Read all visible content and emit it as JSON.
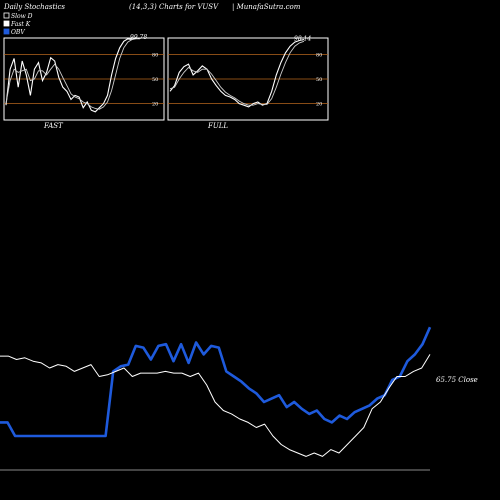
{
  "header": {
    "left": "Daily Stochastics",
    "center": "(14,3,3) Charts for VUSV",
    "right": "| MunafaSutra.com"
  },
  "legend": [
    {
      "label": "Slow  D",
      "color": "#000000",
      "border": "#ffffff"
    },
    {
      "label": "Fast K",
      "color": "#ffffff",
      "border": "#ffffff"
    },
    {
      "label": "OBV",
      "color": "#1e5adc",
      "border": "#1e5adc"
    }
  ],
  "chart_data": [
    {
      "type": "line",
      "panel": "FAST",
      "title": "FAST",
      "ylim": [
        0,
        100
      ],
      "yticks": [
        20,
        50,
        80
      ],
      "reference_lines": [
        20,
        50,
        80
      ],
      "last_value_label": "99.78",
      "series": [
        {
          "name": "Fast K",
          "color": "#ffffff",
          "values": [
            18,
            62,
            75,
            40,
            72,
            55,
            30,
            62,
            70,
            48,
            58,
            76,
            72,
            52,
            40,
            35,
            25,
            30,
            28,
            15,
            22,
            12,
            10,
            15,
            20,
            30,
            55,
            75,
            88,
            96,
            99,
            98,
            100,
            99.78
          ]
        },
        {
          "name": "Slow  D",
          "color": "#cccccc",
          "values": [
            20,
            48,
            62,
            58,
            60,
            62,
            48,
            50,
            60,
            60,
            55,
            62,
            68,
            62,
            52,
            42,
            32,
            28,
            26,
            22,
            20,
            16,
            14,
            13,
            16,
            22,
            36,
            55,
            75,
            88,
            95,
            98,
            99,
            99
          ]
        }
      ]
    },
    {
      "type": "line",
      "panel": "FULL",
      "title": "FULL",
      "ylim": [
        0,
        100
      ],
      "yticks": [
        20,
        50,
        80
      ],
      "reference_lines": [
        20,
        50,
        80
      ],
      "last_value_label": "98.14",
      "series": [
        {
          "name": "Fast K",
          "color": "#ffffff",
          "values": [
            35,
            42,
            58,
            65,
            68,
            55,
            60,
            66,
            62,
            50,
            42,
            35,
            30,
            28,
            25,
            20,
            18,
            16,
            20,
            22,
            18,
            20,
            35,
            55,
            70,
            82,
            90,
            95,
            97,
            98.14
          ]
        },
        {
          "name": "Slow  D",
          "color": "#cccccc",
          "values": [
            38,
            40,
            50,
            58,
            64,
            60,
            58,
            62,
            62,
            56,
            48,
            40,
            34,
            30,
            27,
            23,
            20,
            18,
            18,
            20,
            19,
            19,
            26,
            40,
            56,
            70,
            82,
            90,
            94,
            96
          ]
        }
      ]
    },
    {
      "type": "line",
      "panel": "price",
      "close_label": "65.75 Close",
      "series": [
        {
          "name": "OBV",
          "color": "#1e5adc",
          "values": [
            28,
            28,
            20,
            20,
            20,
            20,
            20,
            20,
            20,
            20,
            20,
            20,
            20,
            20,
            20,
            58,
            61,
            62,
            73,
            72,
            65,
            73,
            74,
            64,
            74,
            63,
            75,
            68,
            73,
            72,
            58,
            55,
            52,
            48,
            45,
            40,
            42,
            44,
            37,
            40,
            36,
            33,
            35,
            30,
            28,
            32,
            30,
            34,
            36,
            38,
            42,
            44,
            53,
            55,
            64,
            68,
            74,
            84
          ]
        },
        {
          "name": "Close",
          "color": "#ffffff",
          "values": [
            67,
            67,
            65,
            66,
            64,
            63,
            60,
            62,
            61,
            58,
            60,
            62,
            55,
            56,
            58,
            60,
            55,
            57,
            57,
            57,
            58,
            57,
            57,
            55,
            57,
            50,
            40,
            35,
            33,
            30,
            28,
            25,
            27,
            20,
            15,
            12,
            10,
            8,
            10,
            8,
            12,
            10,
            15,
            20,
            25,
            36,
            40,
            48,
            55,
            55,
            58,
            60,
            68
          ]
        }
      ]
    }
  ]
}
